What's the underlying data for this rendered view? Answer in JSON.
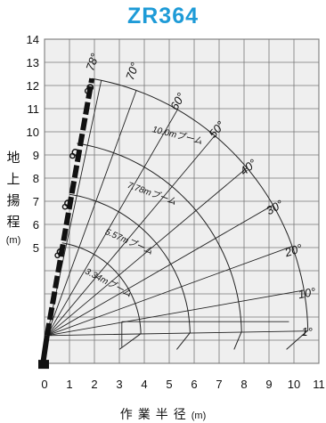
{
  "title": "ZR364",
  "y_axis_label": [
    "地",
    "上",
    "揚",
    "程"
  ],
  "y_axis_unit": "(m)",
  "x_axis_label": "作業半径",
  "x_axis_unit": "(m)",
  "chart_data": {
    "type": "crane-working-range",
    "xlim": [
      0,
      11
    ],
    "ylim": [
      0,
      14
    ],
    "x_ticks": [
      "0",
      "1",
      "2",
      "3",
      "4",
      "5",
      "6",
      "7",
      "8",
      "9",
      "10",
      "11"
    ],
    "y_ticks": [
      "5",
      "6",
      "7",
      "8",
      "9",
      "10",
      "11",
      "12",
      "13",
      "14"
    ],
    "grid": true,
    "boom_pivot": [
      0.1,
      1.2
    ],
    "booms": [
      {
        "label": "3.34mブーム",
        "tip": [
          0.7,
          5.2
        ],
        "radius_end": 3.0
      },
      {
        "label": "5.57mブーム",
        "tip": [
          1.0,
          7.3
        ],
        "radius_end": 5.3
      },
      {
        "label": "7.78mブーム",
        "tip": [
          1.3,
          9.5
        ],
        "radius_end": 7.6
      },
      {
        "label": "10.0mブーム",
        "tip": [
          1.9,
          12.3
        ],
        "radius_end": 9.7
      }
    ],
    "angle_lines": [
      "78°",
      "70°",
      "60°",
      "50°",
      "40°",
      "30°",
      "20°",
      "10°",
      "1°"
    ]
  }
}
